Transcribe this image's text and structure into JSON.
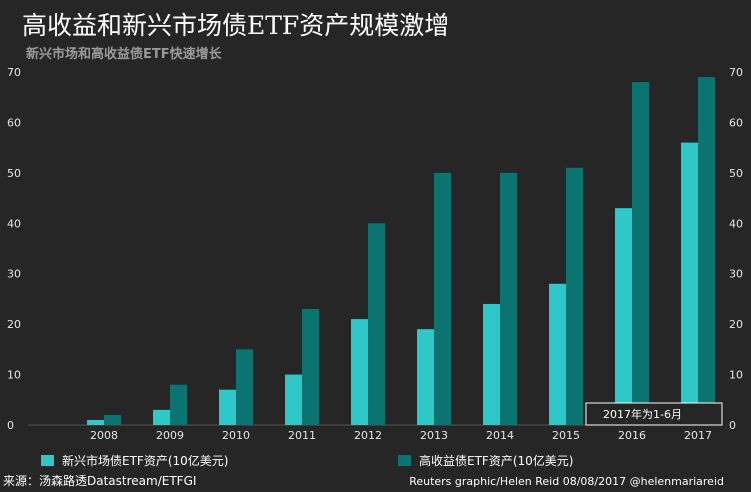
{
  "chart_data": {
    "type": "bar",
    "title": "高收益和新兴市场债ETF资产规模激增",
    "subtitle": "新兴市场和高收益债ETF快速增长",
    "categories": [
      "2008",
      "2009",
      "2010",
      "2011",
      "2012",
      "2013",
      "2014",
      "2015",
      "2016",
      "2017"
    ],
    "series": [
      {
        "name": "新兴市场债ETF资产(10亿美元)",
        "color": "#2ec8c8",
        "values": [
          1,
          3,
          7,
          10,
          21,
          19,
          24,
          28,
          43,
          56
        ]
      },
      {
        "name": "高收益债ETF资产(10亿美元)",
        "color": "#0b7470",
        "values": [
          2,
          8,
          15,
          23,
          40,
          50,
          50,
          51,
          68,
          69
        ]
      }
    ],
    "ylim": [
      0,
      70
    ],
    "yticks": [
      0,
      10,
      20,
      30,
      40,
      50,
      60,
      70
    ],
    "grid": false,
    "legend_position": "bottom",
    "annotation": "2017年为1-6月",
    "source": "来源：汤森路透Datastream/ETFGI",
    "credit": "Reuters graphic/Helen Reid 08/08/2017  @helenmariareid"
  }
}
